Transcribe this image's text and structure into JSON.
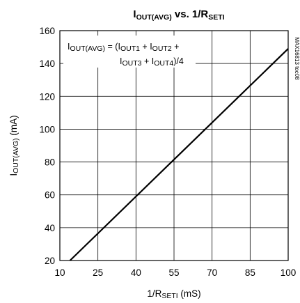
{
  "chart_data": {
    "type": "line",
    "title": {
      "p1": "I",
      "s1": "OUT(AVG)",
      "p2": " vs. 1/R",
      "s2": "SETI"
    },
    "xlabel": {
      "pre": "1/R",
      "sub": "SETI",
      "post": " (mS)"
    },
    "ylabel": {
      "pre": "I",
      "sub": "OUT(AVG)",
      "post": " (mA)"
    },
    "xlim": [
      10,
      100
    ],
    "ylim": [
      20,
      160
    ],
    "xticks": [
      10,
      25,
      40,
      55,
      70,
      85,
      100
    ],
    "yticks": [
      20,
      40,
      60,
      80,
      100,
      120,
      140,
      160
    ],
    "grid": true,
    "series": [
      {
        "x": [
          14,
          100
        ],
        "y": [
          20,
          149
        ]
      }
    ],
    "annotation": {
      "line1": {
        "p1": "I",
        "s1": "OUT(AVG)",
        "p2": " = (I",
        "s2": "OUT1",
        "p3": " + I",
        "s3": "OUT2",
        "p4": " +"
      },
      "line2": {
        "p1": "I",
        "s1": "OUT3",
        "p2": " + I",
        "s2": "OUT4",
        "p3": ")/4"
      }
    },
    "figure_id": "MAX16813 toc08",
    "line_color": "#000000",
    "grid_color": "#000000"
  }
}
